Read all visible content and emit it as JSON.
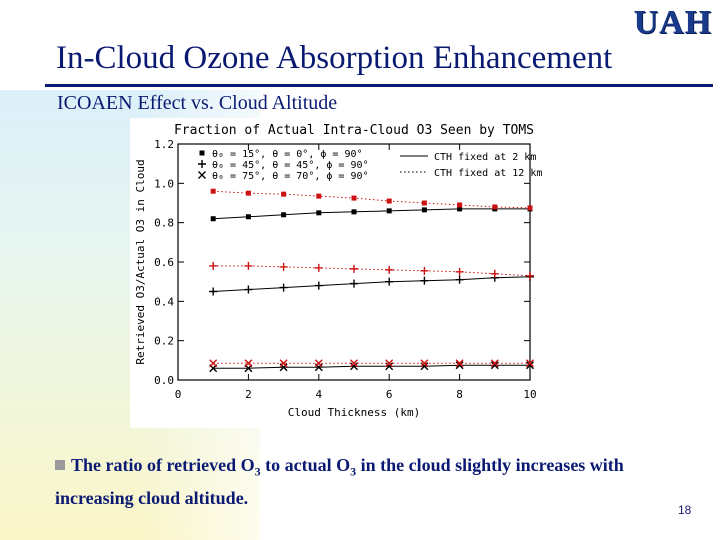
{
  "slide": {
    "logo": "UAH",
    "title": "In-Cloud Ozone Absorption Enhancement",
    "subtitle": "ICOAEN Effect vs. Cloud Altitude",
    "bullet": {
      "prefix": "The ratio of retrieved O",
      "sub1": "3",
      "mid": " to actual O",
      "sub2": "3",
      "suffix": " in the cloud slightly increases with increasing cloud altitude."
    },
    "page_number": "18"
  },
  "chart_data": {
    "type": "line",
    "title": "Fraction of Actual Intra-Cloud O3 Seen by TOMS",
    "xlabel": "Cloud Thickness (km)",
    "ylabel": "Retrieved O3/Actual O3 in Cloud",
    "xlim": [
      0,
      10
    ],
    "ylim": [
      0,
      1.2
    ],
    "xticks": [
      "0",
      "2",
      "4",
      "6",
      "8",
      "10"
    ],
    "yticks": [
      "0.0",
      "0.2",
      "0.4",
      "0.6",
      "0.8",
      "1.0",
      "1.2"
    ],
    "grid": false,
    "legend_markers": [
      {
        "marker": "square",
        "label": "θ₀ = 15°, θ = 0°, ϕ = 90°"
      },
      {
        "marker": "plus",
        "label": "θ₀ = 45°, θ = 45°, ϕ = 90°"
      },
      {
        "marker": "cross",
        "label": "θ₀ = 75°, θ = 70°, ϕ = 90°"
      }
    ],
    "legend_lines": [
      {
        "style": "solid",
        "label": "CTH fixed at 2 km"
      },
      {
        "style": "dotted",
        "label": "CTH fixed at 12 km"
      }
    ],
    "colors": {
      "cth2": "#000000",
      "cth12": "#cc1111"
    },
    "x": [
      1,
      2,
      3,
      4,
      5,
      6,
      7,
      8,
      9,
      10
    ],
    "series": [
      {
        "marker": "square",
        "line": "solid",
        "color": "#000000",
        "values": [
          0.82,
          0.83,
          0.84,
          0.85,
          0.855,
          0.86,
          0.865,
          0.87,
          0.87,
          0.87
        ]
      },
      {
        "marker": "square",
        "line": "dotted",
        "color": "#cc1111",
        "values": [
          0.96,
          0.95,
          0.945,
          0.935,
          0.925,
          0.91,
          0.9,
          0.89,
          0.88,
          0.875
        ]
      },
      {
        "marker": "plus",
        "line": "solid",
        "color": "#000000",
        "values": [
          0.45,
          0.46,
          0.47,
          0.48,
          0.49,
          0.5,
          0.505,
          0.51,
          0.52,
          0.525
        ]
      },
      {
        "marker": "plus",
        "line": "dotted",
        "color": "#cc1111",
        "values": [
          0.58,
          0.58,
          0.575,
          0.57,
          0.565,
          0.56,
          0.555,
          0.55,
          0.54,
          0.53
        ]
      },
      {
        "marker": "cross",
        "line": "solid",
        "color": "#000000",
        "values": [
          0.06,
          0.06,
          0.065,
          0.065,
          0.07,
          0.07,
          0.07,
          0.075,
          0.075,
          0.075
        ]
      },
      {
        "marker": "cross",
        "line": "dotted",
        "color": "#cc1111",
        "values": [
          0.085,
          0.085,
          0.085,
          0.085,
          0.085,
          0.085,
          0.085,
          0.085,
          0.085,
          0.085
        ]
      }
    ]
  }
}
